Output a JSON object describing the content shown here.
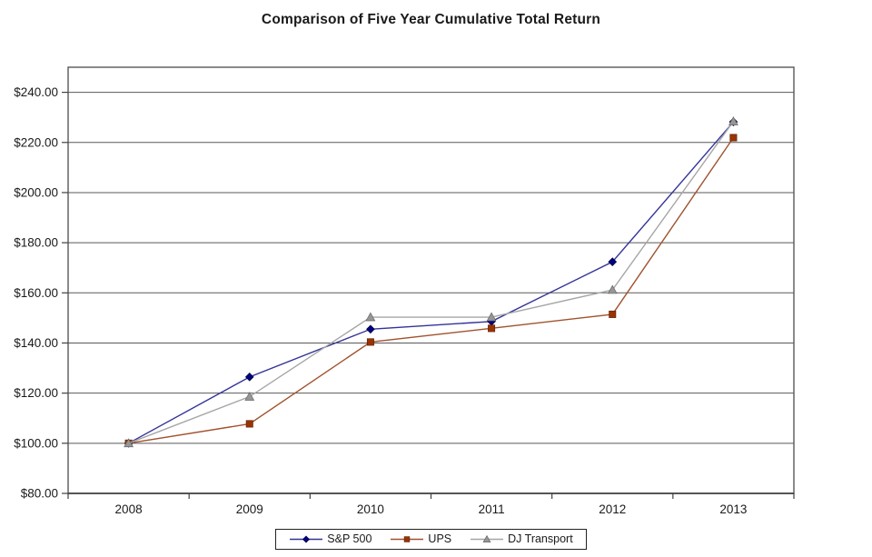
{
  "page": {
    "background": "#ffffff"
  },
  "chart_data": {
    "type": "line",
    "title": "Comparison of Five Year Cumulative Total Return",
    "categories": [
      "2008",
      "2009",
      "2010",
      "2011",
      "2012",
      "2013"
    ],
    "xlabel": "",
    "ylabel": "",
    "ylim": [
      80,
      250
    ],
    "grid": true,
    "legend_position": "bottom",
    "y_axis": {
      "tick_values": [
        80,
        100,
        120,
        140,
        160,
        180,
        200,
        220,
        240
      ],
      "tick_labels": [
        "$80.00",
        "$100.00",
        "$120.00",
        "$140.00",
        "$160.00",
        "$180.00",
        "$200.00",
        "$220.00",
        "$240.00"
      ]
    },
    "series": [
      {
        "name": "S&P 500",
        "marker": "diamond",
        "marker_color": "#000080",
        "line_color": "#333399",
        "values": [
          100.0,
          126.46,
          145.51,
          148.59,
          172.37,
          228.19
        ]
      },
      {
        "name": "UPS",
        "marker": "square",
        "marker_color": "#993300",
        "line_color": "#A0522D",
        "values": [
          100.0,
          107.75,
          140.39,
          145.84,
          151.44,
          221.91
        ]
      },
      {
        "name": "DJ Transport",
        "marker": "triangle",
        "marker_color": "#969696",
        "line_color": "#A6A6A6",
        "values": [
          100.0,
          118.59,
          150.3,
          150.31,
          161.19,
          228.42
        ]
      }
    ]
  }
}
